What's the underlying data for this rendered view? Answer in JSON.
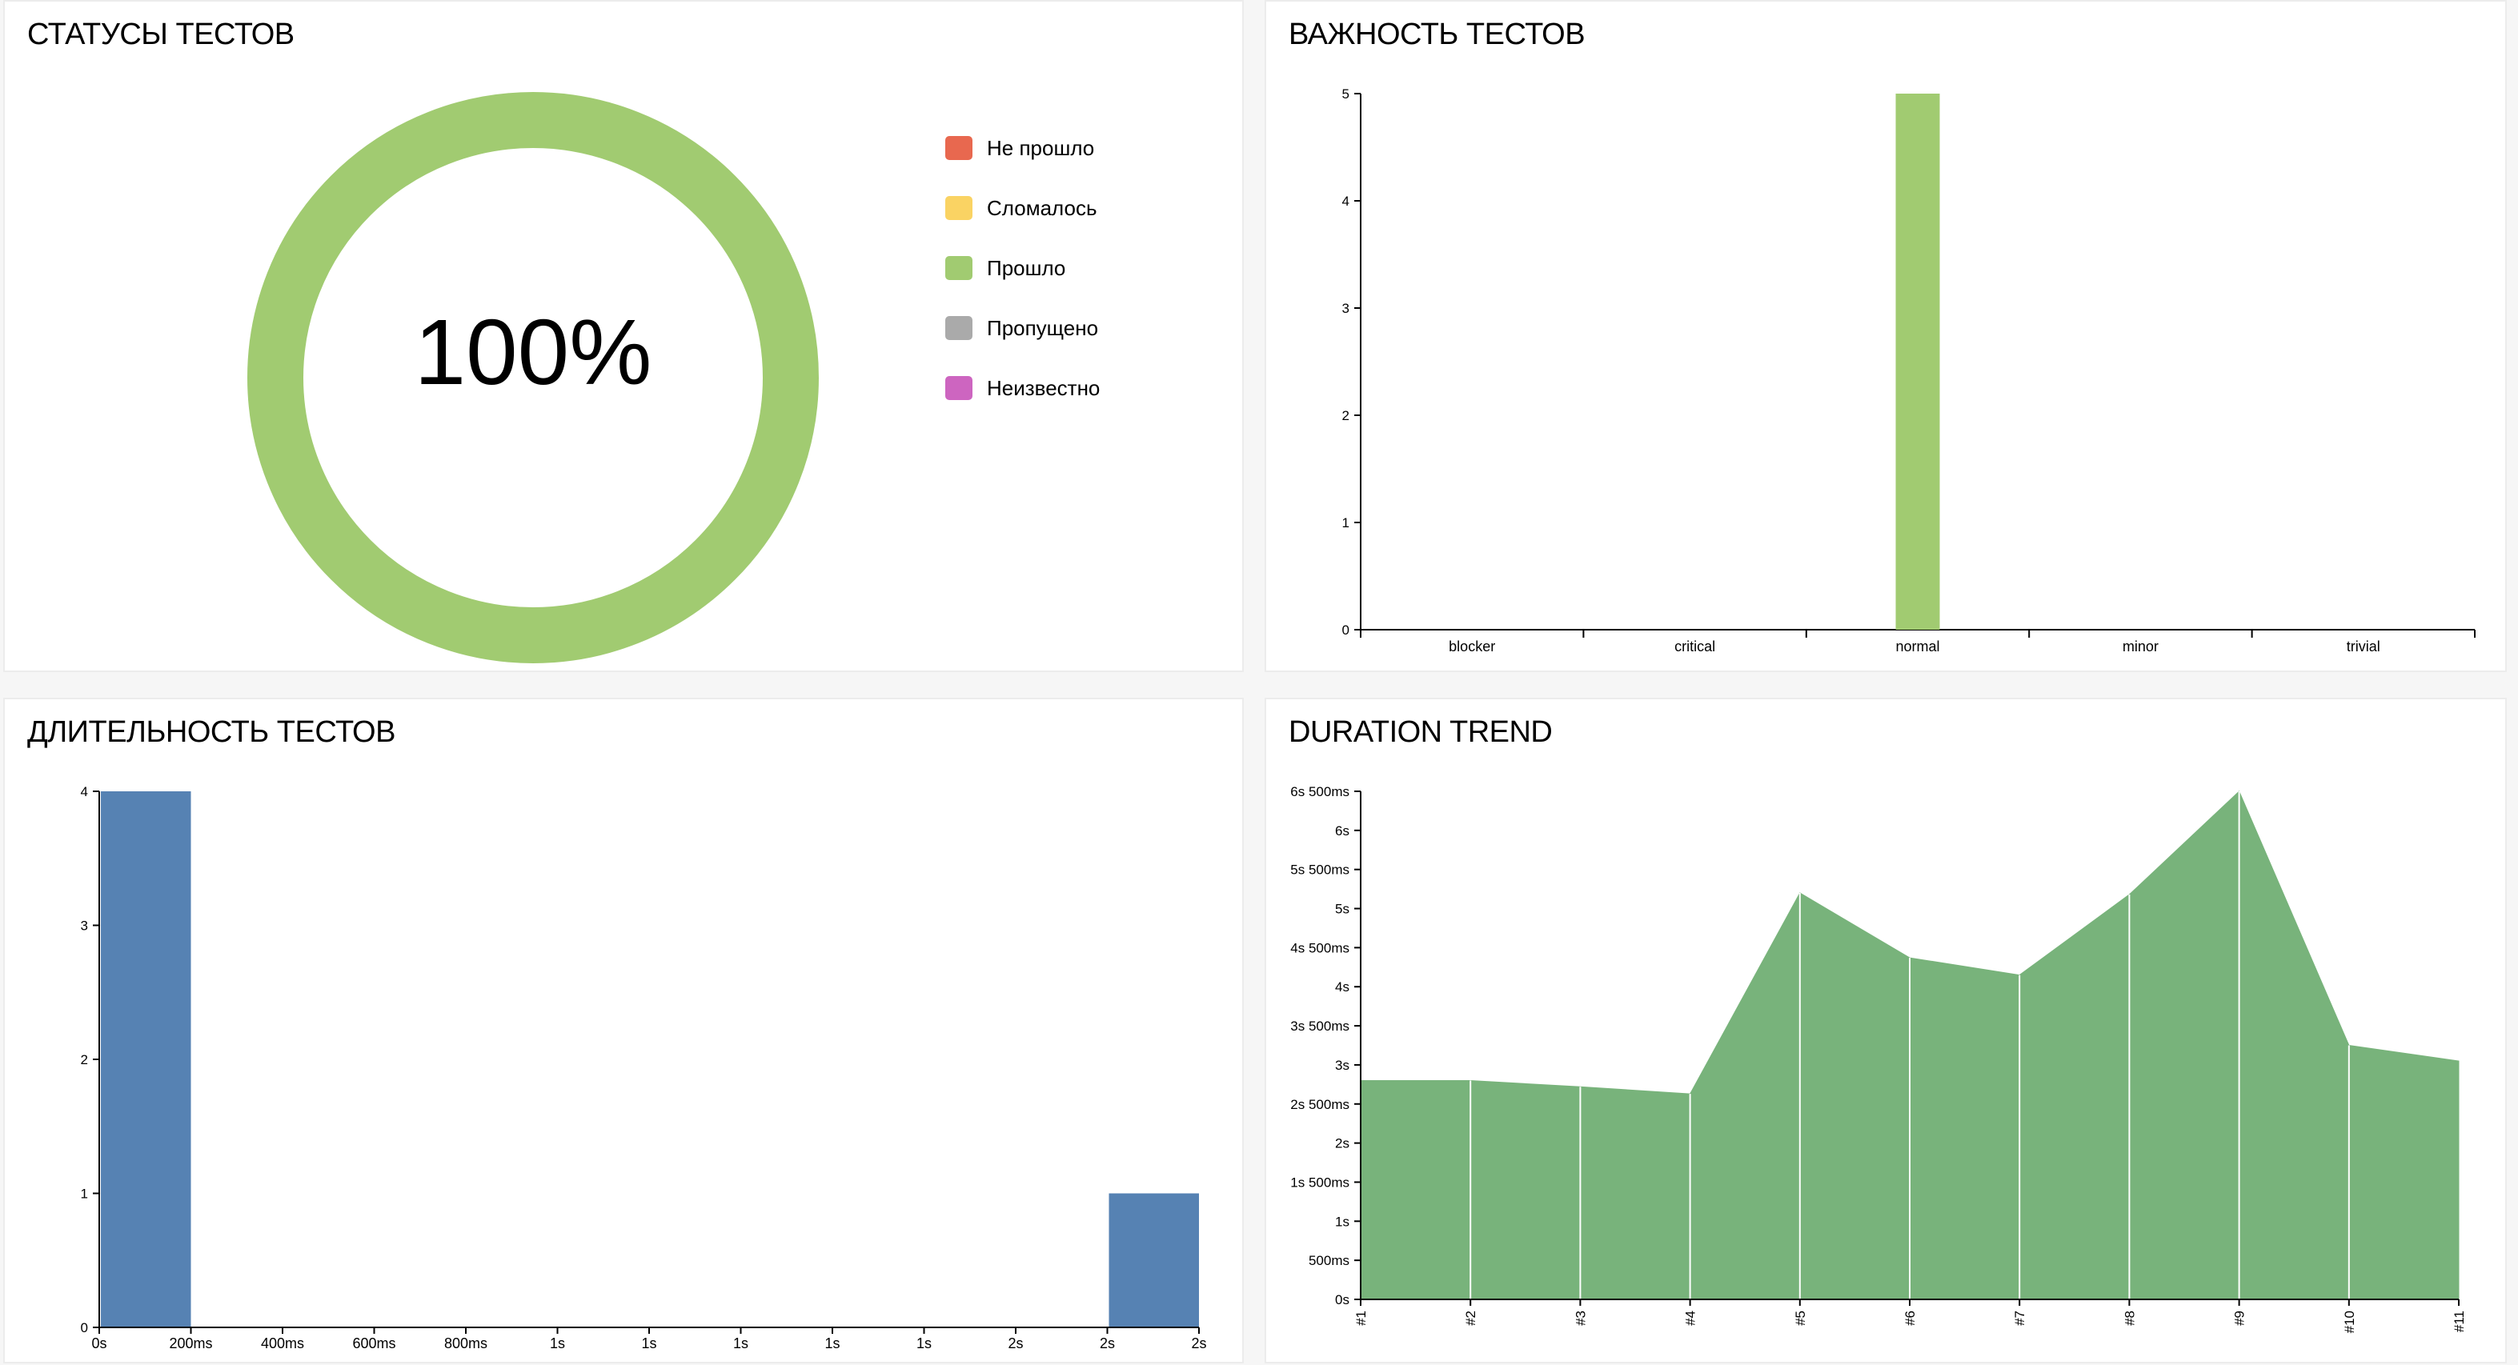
{
  "statuses": {
    "title": "СТАТУСЫ ТЕСТОВ",
    "center_label": "100%",
    "legend": [
      {
        "label": "Не прошло",
        "color": "#e8684f"
      },
      {
        "label": "Сломалось",
        "color": "#fad363"
      },
      {
        "label": "Прошло",
        "color": "#a1cb71"
      },
      {
        "label": "Пропущено",
        "color": "#aaaaaa"
      },
      {
        "label": "Неизвестно",
        "color": "#cd65c0"
      }
    ],
    "chart_data": {
      "type": "pie",
      "labels": [
        "Не прошло",
        "Сломалось",
        "Прошло",
        "Пропущено",
        "Неизвестно"
      ],
      "values": [
        0,
        0,
        100,
        0,
        0
      ],
      "colors": [
        "#e8684f",
        "#fad363",
        "#a1cb71",
        "#aaaaaa",
        "#cd65c0"
      ]
    }
  },
  "severity": {
    "title": "ВАЖНОСТЬ ТЕСТОВ",
    "chart_data": {
      "type": "bar",
      "categories": [
        "blocker",
        "critical",
        "normal",
        "minor",
        "trivial"
      ],
      "values": [
        0,
        0,
        5,
        0,
        0
      ],
      "ylim": [
        0,
        5
      ],
      "yticks": [
        0,
        1,
        2,
        3,
        4,
        5
      ],
      "ytick_labels": [
        "0",
        "1",
        "2",
        "3",
        "4",
        "5"
      ],
      "color": "#a1cb71"
    }
  },
  "duration": {
    "title": "ДЛИТЕЛЬНОСТЬ ТЕСТОВ",
    "chart_data": {
      "type": "bar",
      "x_tick_labels": [
        "0s",
        "200ms",
        "400ms",
        "600ms",
        "800ms",
        "1s",
        "1s",
        "1s",
        "1s",
        "1s",
        "2s",
        "2s",
        "2s"
      ],
      "bins": [
        {
          "from": 0,
          "to": 1,
          "value": 4
        },
        {
          "from": 11,
          "to": 12,
          "value": 1
        }
      ],
      "ylim": [
        0,
        4
      ],
      "yticks": [
        0,
        1,
        2,
        3,
        4
      ],
      "ytick_labels": [
        "0",
        "1",
        "2",
        "3",
        "4"
      ],
      "color": "#5682b3"
    }
  },
  "trend": {
    "title": "DURATION TREND",
    "chart_data": {
      "type": "area",
      "x": [
        "#1",
        "#2",
        "#3",
        "#4",
        "#5",
        "#6",
        "#7",
        "#8",
        "#9",
        "#10",
        "#11"
      ],
      "values": [
        2.8,
        2.8,
        2.72,
        2.63,
        5.2,
        4.37,
        4.15,
        5.18,
        6.5,
        3.25,
        3.05
      ],
      "ylim": [
        0,
        6.5
      ],
      "yticks": [
        0,
        0.5,
        1,
        1.5,
        2,
        2.5,
        3,
        3.5,
        4,
        4.5,
        5,
        5.5,
        6,
        6.5
      ],
      "ytick_labels": [
        "0s",
        "500ms",
        "1s",
        "1s 500ms",
        "2s",
        "2s 500ms",
        "3s",
        "3s 500ms",
        "4s",
        "4s 500ms",
        "5s",
        "5s 500ms",
        "6s",
        "6s 500ms"
      ],
      "color": "#78b37b"
    }
  }
}
